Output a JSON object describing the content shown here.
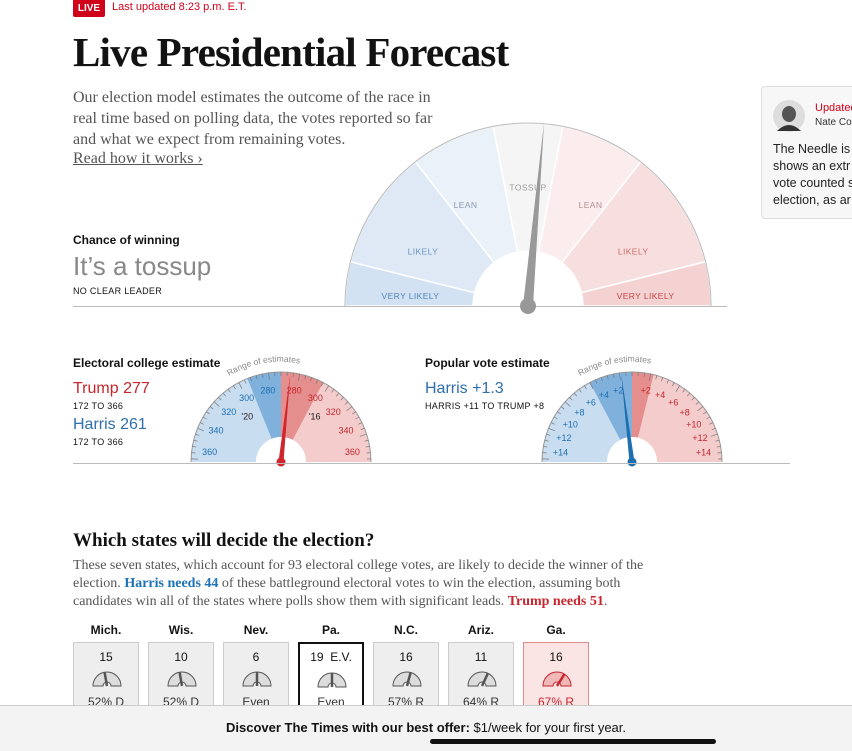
{
  "header": {
    "live": "LIVE",
    "updated": "Last updated 8:23 p.m. E.T."
  },
  "title": "Live Presidential Forecast",
  "intro": "Our election model estimates the outcome of the race in real time based on polling data, the votes reported so far and what we expect from remaining votes.",
  "read_more": "Read how it works ›",
  "chance": {
    "label": "Chance of winning",
    "value": "It’s a tossup",
    "note": "NO CLEAR LEADER"
  },
  "needle": {
    "labels": [
      "VERY LIKELY",
      "LIKELY",
      "LEAN",
      "TOSSUP",
      "LEAN",
      "LIKELY",
      "VERY LIKELY"
    ]
  },
  "electoral": {
    "title": "Electoral college estimate",
    "range_label": "Range of estimates",
    "trump": "Trump 277",
    "trump_range": "172 TO 366",
    "harris": "Harris 261",
    "harris_range": "172 TO 366",
    "scale_left": [
      "360",
      "340",
      "320",
      "300",
      "280"
    ],
    "scale_right": [
      "280",
      "300",
      "320",
      "340",
      "360"
    ],
    "markers": [
      "'20",
      "'16"
    ]
  },
  "popular": {
    "title": "Popular vote estimate",
    "range_label": "Range of estimates",
    "harris": "Harris +1.3",
    "range": "HARRIS +11 TO TRUMP +8",
    "scale_left": [
      "+14",
      "+12",
      "+10",
      "+8",
      "+6",
      "+4",
      "+2"
    ],
    "scale_right": [
      "+2",
      "+4",
      "+6",
      "+8",
      "+10",
      "+12",
      "+14"
    ]
  },
  "states": {
    "title": "Which states will decide the election?",
    "text": [
      "These seven states, which account for 93 electoral college votes, are likely to decide the winner of the election. ",
      "Harris needs 44",
      " of these battleground electoral votes to win the election, assuming both candidates win all of the states where polls show them with significant leads. ",
      "Trump needs 51",
      "."
    ],
    "cards": [
      {
        "name": "Mich.",
        "votes": "15",
        "result": "52% D"
      },
      {
        "name": "Wis.",
        "votes": "10",
        "result": "52% D"
      },
      {
        "name": "Nev.",
        "votes": "6",
        "result": "Even"
      },
      {
        "name": "Pa.",
        "votes": "19  E.V.",
        "result": "Even"
      },
      {
        "name": "N.C.",
        "votes": "16",
        "result": "57% R"
      },
      {
        "name": "Ariz.",
        "votes": "11",
        "result": "64% R"
      },
      {
        "name": "Ga.",
        "votes": "16",
        "result": "67% R"
      }
    ]
  },
  "side_card": {
    "updated": "Updated",
    "author": "Nate Co",
    "lines": [
      "The Needle is",
      "shows an extr",
      "vote counted s",
      "election, as ar"
    ]
  },
  "banner": {
    "lead": "Discover The Times with our best offer:",
    "offer": "$1/week for your first year."
  }
}
